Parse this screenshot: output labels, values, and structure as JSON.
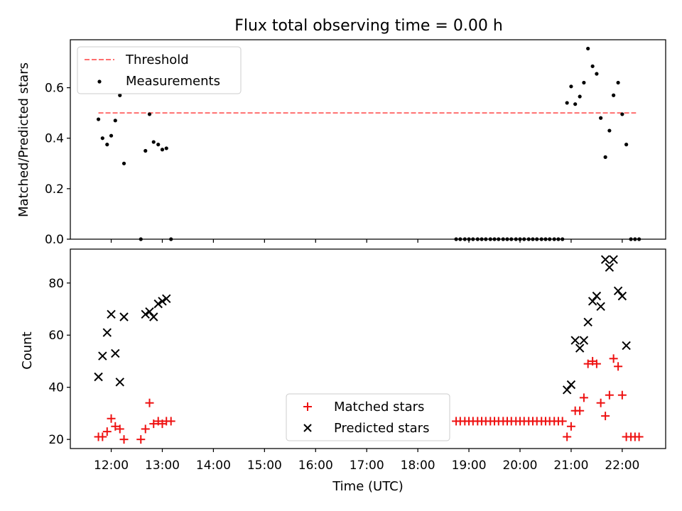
{
  "title": "Flux total observing time = 0.00 h",
  "colors": {
    "threshold": "#ff6f6f",
    "measurement": "#000000",
    "matched": "#ee1111",
    "predicted": "#000000"
  },
  "chart_data": [
    {
      "type": "scatter",
      "ylabel": "Matched/Predicted stars",
      "xlim": [
        11.2,
        22.85
      ],
      "ylim": [
        0,
        0.79
      ],
      "yticks": [
        0.0,
        0.2,
        0.4,
        0.6
      ],
      "ytick_labels": [
        "0.0",
        "0.2",
        "0.4",
        "0.6"
      ],
      "legend": {
        "position": "upper left",
        "entries": [
          "Threshold",
          "Measurements"
        ]
      },
      "threshold": {
        "name": "Threshold",
        "y": 0.5,
        "x_range": [
          11.75,
          22.27
        ],
        "style": "dashed"
      },
      "series": [
        {
          "name": "Measurements",
          "marker": "dot",
          "points": [
            [
              11.75,
              0.475
            ],
            [
              11.83,
              0.4
            ],
            [
              11.92,
              0.375
            ],
            [
              12.0,
              0.41
            ],
            [
              12.08,
              0.47
            ],
            [
              12.17,
              0.57
            ],
            [
              12.25,
              0.3
            ],
            [
              12.58,
              0.0
            ],
            [
              12.67,
              0.35
            ],
            [
              12.75,
              0.495
            ],
            [
              12.83,
              0.385
            ],
            [
              12.92,
              0.375
            ],
            [
              13.0,
              0.355
            ],
            [
              13.08,
              0.36
            ],
            [
              13.17,
              0.0
            ],
            [
              18.75,
              0.0
            ],
            [
              18.83,
              0.0
            ],
            [
              18.92,
              0.0
            ],
            [
              19.0,
              0.0
            ],
            [
              19.08,
              0.0
            ],
            [
              19.17,
              0.0
            ],
            [
              19.25,
              0.0
            ],
            [
              19.33,
              0.0
            ],
            [
              19.42,
              0.0
            ],
            [
              19.5,
              0.0
            ],
            [
              19.58,
              0.0
            ],
            [
              19.67,
              0.0
            ],
            [
              19.75,
              0.0
            ],
            [
              19.83,
              0.0
            ],
            [
              19.92,
              0.0
            ],
            [
              20.0,
              0.0
            ],
            [
              20.08,
              0.0
            ],
            [
              20.17,
              0.0
            ],
            [
              20.25,
              0.0
            ],
            [
              20.33,
              0.0
            ],
            [
              20.42,
              0.0
            ],
            [
              20.5,
              0.0
            ],
            [
              20.58,
              0.0
            ],
            [
              20.67,
              0.0
            ],
            [
              20.75,
              0.0
            ],
            [
              20.83,
              0.0
            ],
            [
              20.92,
              0.54
            ],
            [
              21.0,
              0.605
            ],
            [
              21.08,
              0.535
            ],
            [
              21.17,
              0.565
            ],
            [
              21.25,
              0.62
            ],
            [
              21.33,
              0.755
            ],
            [
              21.42,
              0.685
            ],
            [
              21.5,
              0.655
            ],
            [
              21.58,
              0.48
            ],
            [
              21.67,
              0.325
            ],
            [
              21.75,
              0.43
            ],
            [
              21.83,
              0.57
            ],
            [
              21.92,
              0.62
            ],
            [
              22.0,
              0.495
            ],
            [
              22.08,
              0.375
            ],
            [
              22.17,
              0.0
            ],
            [
              22.25,
              0.0
            ],
            [
              22.33,
              0.0
            ]
          ]
        }
      ]
    },
    {
      "type": "scatter",
      "xlabel": "Time (UTC)",
      "ylabel": "Count",
      "xlim": [
        11.2,
        22.85
      ],
      "ylim": [
        16.5,
        93
      ],
      "xticks": [
        12,
        13,
        14,
        15,
        16,
        17,
        18,
        19,
        20,
        21,
        22
      ],
      "xtick_labels": [
        "12:00",
        "13:00",
        "14:00",
        "15:00",
        "16:00",
        "17:00",
        "18:00",
        "19:00",
        "20:00",
        "21:00",
        "22:00"
      ],
      "yticks": [
        20,
        40,
        60,
        80
      ],
      "ytick_labels": [
        "20",
        "40",
        "60",
        "80"
      ],
      "legend": {
        "position": "lower center",
        "entries": [
          "Matched stars",
          "Predicted stars"
        ]
      },
      "series": [
        {
          "name": "Matched stars",
          "marker": "plus",
          "points": [
            [
              11.75,
              21
            ],
            [
              11.83,
              21
            ],
            [
              11.92,
              23
            ],
            [
              12.0,
              28
            ],
            [
              12.08,
              25
            ],
            [
              12.17,
              24
            ],
            [
              12.25,
              20
            ],
            [
              12.58,
              20
            ],
            [
              12.67,
              24
            ],
            [
              12.75,
              34
            ],
            [
              12.83,
              26
            ],
            [
              12.92,
              27
            ],
            [
              13.0,
              26
            ],
            [
              13.08,
              27
            ],
            [
              13.17,
              27
            ],
            [
              18.75,
              27
            ],
            [
              18.83,
              27
            ],
            [
              18.92,
              27
            ],
            [
              19.0,
              27
            ],
            [
              19.08,
              27
            ],
            [
              19.17,
              27
            ],
            [
              19.25,
              27
            ],
            [
              19.33,
              27
            ],
            [
              19.42,
              27
            ],
            [
              19.5,
              27
            ],
            [
              19.58,
              27
            ],
            [
              19.67,
              27
            ],
            [
              19.75,
              27
            ],
            [
              19.83,
              27
            ],
            [
              19.92,
              27
            ],
            [
              20.0,
              27
            ],
            [
              20.08,
              27
            ],
            [
              20.17,
              27
            ],
            [
              20.25,
              27
            ],
            [
              20.33,
              27
            ],
            [
              20.42,
              27
            ],
            [
              20.5,
              27
            ],
            [
              20.58,
              27
            ],
            [
              20.67,
              27
            ],
            [
              20.75,
              27
            ],
            [
              20.83,
              27
            ],
            [
              20.92,
              21
            ],
            [
              21.0,
              25
            ],
            [
              21.08,
              31
            ],
            [
              21.17,
              31
            ],
            [
              21.25,
              36
            ],
            [
              21.33,
              49
            ],
            [
              21.42,
              50
            ],
            [
              21.5,
              49
            ],
            [
              21.58,
              34
            ],
            [
              21.67,
              29
            ],
            [
              21.75,
              37
            ],
            [
              21.83,
              51
            ],
            [
              21.92,
              48
            ],
            [
              22.0,
              37
            ],
            [
              22.08,
              21
            ],
            [
              22.17,
              21
            ],
            [
              22.25,
              21
            ],
            [
              22.33,
              21
            ]
          ]
        },
        {
          "name": "Predicted stars",
          "marker": "x",
          "points": [
            [
              11.75,
              44
            ],
            [
              11.83,
              52
            ],
            [
              11.92,
              61
            ],
            [
              12.0,
              68
            ],
            [
              12.08,
              53
            ],
            [
              12.17,
              42
            ],
            [
              12.25,
              67
            ],
            [
              12.67,
              68
            ],
            [
              12.75,
              69
            ],
            [
              12.83,
              67
            ],
            [
              12.92,
              72
            ],
            [
              13.0,
              73
            ],
            [
              13.08,
              74
            ],
            [
              20.92,
              39
            ],
            [
              21.0,
              41
            ],
            [
              21.08,
              58
            ],
            [
              21.17,
              55
            ],
            [
              21.25,
              58
            ],
            [
              21.33,
              65
            ],
            [
              21.42,
              73
            ],
            [
              21.5,
              75
            ],
            [
              21.58,
              71
            ],
            [
              21.67,
              89
            ],
            [
              21.75,
              86
            ],
            [
              21.83,
              89
            ],
            [
              21.92,
              77
            ],
            [
              22.0,
              75
            ],
            [
              22.08,
              56
            ]
          ]
        }
      ]
    }
  ]
}
